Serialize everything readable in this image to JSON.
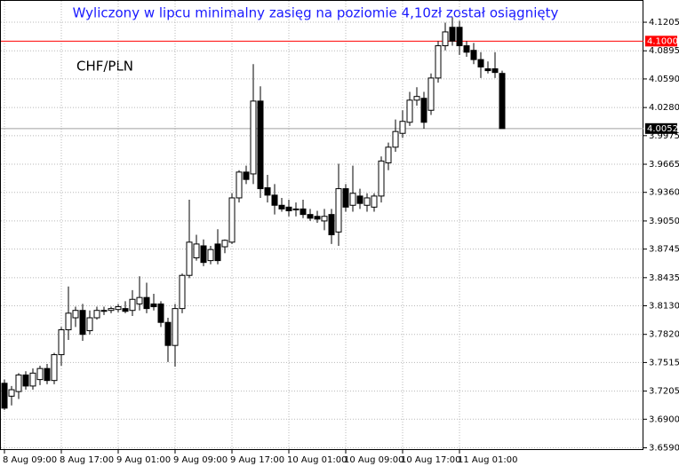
{
  "chart_data": {
    "type": "candlestick",
    "title": "Wyliczony w lipcu minimalny zasięg na poziomie 4,10zł został osiągnięty",
    "symbol": "CHF/PLN",
    "title_color": "#1a1aff",
    "up_color": "#ffffff",
    "down_color": "#000000",
    "grid": true,
    "categories": [
      "8 Aug 09:00",
      null,
      null,
      null,
      null,
      null,
      null,
      null,
      "8 Aug 17:00",
      null,
      null,
      null,
      null,
      null,
      null,
      null,
      "9 Aug 01:00",
      null,
      null,
      null,
      null,
      null,
      null,
      null,
      "9 Aug 09:00",
      null,
      null,
      null,
      null,
      null,
      null,
      null,
      "9 Aug 17:00",
      null,
      null,
      null,
      null,
      null,
      null,
      null,
      "10 Aug 01:00",
      null,
      null,
      null,
      null,
      null,
      null,
      null,
      "10 Aug 09:00",
      null,
      null,
      null,
      null,
      null,
      null,
      null,
      "10 Aug 17:00",
      null,
      null,
      null,
      null,
      null,
      null,
      null,
      "11 Aug 01:00",
      null,
      null,
      null,
      null,
      null,
      null
    ],
    "open": [
      3.729,
      3.715,
      3.72,
      3.738,
      3.726,
      3.733,
      3.745,
      3.732,
      3.76,
      3.787,
      3.8,
      3.808,
      3.786,
      3.8,
      3.807,
      3.808,
      3.809,
      3.81,
      3.808,
      3.815,
      3.822,
      3.815,
      3.815,
      3.795,
      3.77,
      3.81,
      3.846,
      3.865,
      3.878,
      3.862,
      3.88,
      3.877,
      3.882,
      3.93,
      3.958,
      3.956,
      4.035,
      3.941,
      3.933,
      3.922,
      3.92,
      3.918,
      3.918,
      3.912,
      3.91,
      3.905,
      3.912,
      3.893,
      3.94,
      3.922,
      3.932,
      3.922,
      3.92,
      3.932,
      3.968,
      3.985,
      4.0,
      4.012,
      4.036,
      4.038,
      4.025,
      4.06,
      4.095,
      4.115,
      4.115,
      4.095,
      4.09,
      4.08,
      4.07,
      4.07,
      4.065
    ],
    "high": [
      3.733,
      3.726,
      3.74,
      3.742,
      3.745,
      3.748,
      3.75,
      3.762,
      3.79,
      3.834,
      3.812,
      3.815,
      3.808,
      3.812,
      3.812,
      3.812,
      3.815,
      3.818,
      3.83,
      3.845,
      3.838,
      3.826,
      3.818,
      3.8,
      3.815,
      3.848,
      3.928,
      3.89,
      3.885,
      3.878,
      3.896,
      3.885,
      3.935,
      3.96,
      3.965,
      4.075,
      4.051,
      3.955,
      3.945,
      3.93,
      3.928,
      3.925,
      3.928,
      3.918,
      3.916,
      3.918,
      3.918,
      3.967,
      3.945,
      3.965,
      3.94,
      3.935,
      3.935,
      3.975,
      3.99,
      4.015,
      4.025,
      4.045,
      4.05,
      4.045,
      4.065,
      4.1,
      4.12,
      4.126,
      4.122,
      4.1,
      4.098,
      4.088,
      4.078,
      4.088,
      4.068
    ],
    "low": [
      3.7,
      3.705,
      3.712,
      3.722,
      3.722,
      3.727,
      3.728,
      3.728,
      3.748,
      3.776,
      3.79,
      3.775,
      3.782,
      3.798,
      3.803,
      3.805,
      3.806,
      3.805,
      3.802,
      3.808,
      3.805,
      3.808,
      3.79,
      3.752,
      3.747,
      3.805,
      3.843,
      3.862,
      3.856,
      3.858,
      3.858,
      3.87,
      3.88,
      3.925,
      3.945,
      3.945,
      3.93,
      3.925,
      3.912,
      3.915,
      3.91,
      3.91,
      3.908,
      3.905,
      3.903,
      3.895,
      3.88,
      3.878,
      3.915,
      3.915,
      3.918,
      3.915,
      3.915,
      3.925,
      3.96,
      3.98,
      3.995,
      4.008,
      4.03,
      4.005,
      4.02,
      4.055,
      4.09,
      4.095,
      4.085,
      4.083,
      4.075,
      4.06,
      4.065,
      4.06,
      4.005
    ],
    "close": [
      3.702,
      3.722,
      3.738,
      3.726,
      3.74,
      3.745,
      3.732,
      3.76,
      3.787,
      3.805,
      3.808,
      3.782,
      3.8,
      3.808,
      3.808,
      3.81,
      3.812,
      3.807,
      3.82,
      3.822,
      3.81,
      3.812,
      3.795,
      3.77,
      3.81,
      3.846,
      3.882,
      3.88,
      3.86,
      3.874,
      3.862,
      3.884,
      3.93,
      3.958,
      3.95,
      4.035,
      3.94,
      3.933,
      3.922,
      3.918,
      3.916,
      3.917,
      3.912,
      3.908,
      3.907,
      3.91,
      3.89,
      3.94,
      3.92,
      3.935,
      3.924,
      3.93,
      3.932,
      3.97,
      3.985,
      4.002,
      4.013,
      4.036,
      4.04,
      4.012,
      4.06,
      4.095,
      4.11,
      4.1,
      4.095,
      4.088,
      4.08,
      4.072,
      4.068,
      4.066,
      4.0052
    ],
    "ylim": [
      3.6566,
      4.1446
    ],
    "yticks": [
      4.1205,
      4.0895,
      {
        "value": 4.059,
        "label": "4.0590"
      },
      {
        "value": 4.028,
        "label": "4.0280"
      },
      3.9975,
      3.9665,
      {
        "value": 3.936,
        "label": "3.9360"
      },
      {
        "value": 3.905,
        "label": "3.9050"
      },
      3.8745,
      3.8435,
      {
        "value": 3.813,
        "label": "3.8130"
      },
      {
        "value": 3.782,
        "label": "3.7820"
      },
      3.7515,
      3.7205,
      {
        "value": 3.69,
        "label": "3.6900"
      },
      {
        "value": 3.659,
        "label": "3.6590"
      }
    ],
    "price_lines": [
      {
        "value": 4.1,
        "label": "4.1000",
        "color": "#ff0000"
      },
      {
        "value": 4.0052,
        "label": "4.0052",
        "color": "#a0a0a0"
      }
    ]
  }
}
